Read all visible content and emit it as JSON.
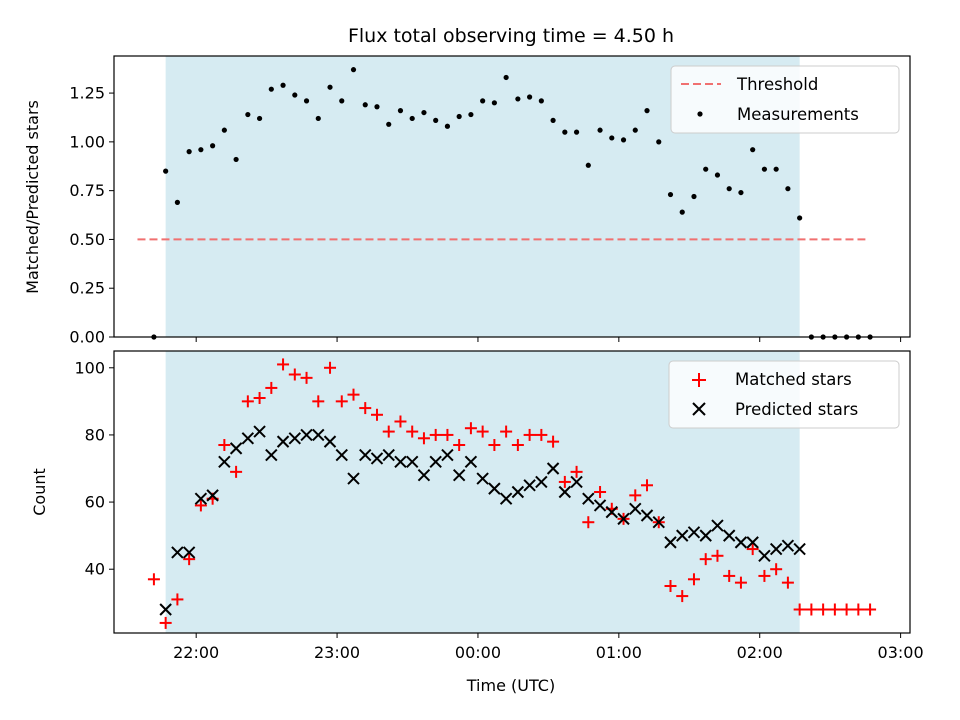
{
  "chart_data": {
    "title": "Flux total observing time = 4.50 h",
    "xlabel": "Time (UTC)",
    "x_tick_labels": [
      "22:00",
      "23:00",
      "00:00",
      "01:00",
      "02:00",
      "03:00"
    ],
    "span_color": "#add8e6",
    "panels": [
      {
        "type": "scatter",
        "ylabel": "Matched/Predicted stars",
        "ylim": [
          0,
          1.44
        ],
        "y_ticks": [
          "0.00",
          "0.25",
          "0.50",
          "0.75",
          "1.00",
          "1.25"
        ],
        "legend_position": "upper right",
        "shaded_span": [
          "21:47",
          "02:17"
        ],
        "threshold": {
          "name": "Threshold",
          "value": 0.5,
          "x_range": [
            "21:35",
            "02:45"
          ],
          "color": "#f07070",
          "style": "dashed"
        },
        "series": [
          {
            "name": "Measurements",
            "color": "#000000",
            "marker": "dot",
            "points": [
              [
                "21:42",
                0.0
              ],
              [
                "21:47",
                0.85
              ],
              [
                "21:52",
                0.69
              ],
              [
                "21:57",
                0.95
              ],
              [
                "22:02",
                0.96
              ],
              [
                "22:07",
                0.98
              ],
              [
                "22:12",
                1.06
              ],
              [
                "22:17",
                0.91
              ],
              [
                "22:22",
                1.14
              ],
              [
                "22:27",
                1.12
              ],
              [
                "22:32",
                1.27
              ],
              [
                "22:37",
                1.29
              ],
              [
                "22:42",
                1.24
              ],
              [
                "22:47",
                1.21
              ],
              [
                "22:52",
                1.12
              ],
              [
                "22:57",
                1.28
              ],
              [
                "23:02",
                1.21
              ],
              [
                "23:07",
                1.37
              ],
              [
                "23:12",
                1.19
              ],
              [
                "23:17",
                1.18
              ],
              [
                "23:22",
                1.09
              ],
              [
                "23:27",
                1.16
              ],
              [
                "23:32",
                1.12
              ],
              [
                "23:37",
                1.15
              ],
              [
                "23:42",
                1.11
              ],
              [
                "23:47",
                1.08
              ],
              [
                "23:52",
                1.13
              ],
              [
                "23:57",
                1.14
              ],
              [
                "00:02",
                1.21
              ],
              [
                "00:07",
                1.2
              ],
              [
                "00:12",
                1.33
              ],
              [
                "00:17",
                1.22
              ],
              [
                "00:22",
                1.23
              ],
              [
                "00:27",
                1.21
              ],
              [
                "00:32",
                1.11
              ],
              [
                "00:37",
                1.05
              ],
              [
                "00:42",
                1.05
              ],
              [
                "00:47",
                0.88
              ],
              [
                "00:52",
                1.06
              ],
              [
                "00:57",
                1.02
              ],
              [
                "01:02",
                1.01
              ],
              [
                "01:07",
                1.06
              ],
              [
                "01:12",
                1.16
              ],
              [
                "01:17",
                1.0
              ],
              [
                "01:22",
                0.73
              ],
              [
                "01:27",
                0.64
              ],
              [
                "01:32",
                0.72
              ],
              [
                "01:37",
                0.86
              ],
              [
                "01:42",
                0.83
              ],
              [
                "01:47",
                0.76
              ],
              [
                "01:52",
                0.74
              ],
              [
                "01:57",
                0.96
              ],
              [
                "02:02",
                0.86
              ],
              [
                "02:07",
                0.86
              ],
              [
                "02:12",
                0.76
              ],
              [
                "02:17",
                0.61
              ],
              [
                "02:22",
                0.0
              ],
              [
                "02:27",
                0.0
              ],
              [
                "02:32",
                0.0
              ],
              [
                "02:37",
                0.0
              ],
              [
                "02:42",
                0.0
              ],
              [
                "02:47",
                0.0
              ]
            ]
          }
        ]
      },
      {
        "type": "scatter",
        "ylabel": "Count",
        "ylim": [
          21,
          105
        ],
        "y_ticks": [
          "40",
          "60",
          "80",
          "100"
        ],
        "legend_position": "upper right",
        "shaded_span": [
          "21:47",
          "02:17"
        ],
        "series": [
          {
            "name": "Matched stars",
            "color": "#ff0000",
            "marker": "plus",
            "points": [
              [
                "21:42",
                37
              ],
              [
                "21:47",
                24
              ],
              [
                "21:52",
                31
              ],
              [
                "21:57",
                43
              ],
              [
                "22:02",
                59
              ],
              [
                "22:07",
                61
              ],
              [
                "22:12",
                77
              ],
              [
                "22:17",
                69
              ],
              [
                "22:22",
                90
              ],
              [
                "22:27",
                91
              ],
              [
                "22:32",
                94
              ],
              [
                "22:37",
                101
              ],
              [
                "22:42",
                98
              ],
              [
                "22:47",
                97
              ],
              [
                "22:52",
                90
              ],
              [
                "22:57",
                100
              ],
              [
                "23:02",
                90
              ],
              [
                "23:07",
                92
              ],
              [
                "23:12",
                88
              ],
              [
                "23:17",
                86
              ],
              [
                "23:22",
                81
              ],
              [
                "23:27",
                84
              ],
              [
                "23:32",
                81
              ],
              [
                "23:37",
                79
              ],
              [
                "23:42",
                80
              ],
              [
                "23:47",
                80
              ],
              [
                "23:52",
                77
              ],
              [
                "23:57",
                82
              ],
              [
                "00:02",
                81
              ],
              [
                "00:07",
                77
              ],
              [
                "00:12",
                81
              ],
              [
                "00:17",
                77
              ],
              [
                "00:22",
                80
              ],
              [
                "00:27",
                80
              ],
              [
                "00:32",
                78
              ],
              [
                "00:37",
                66
              ],
              [
                "00:42",
                69
              ],
              [
                "00:47",
                54
              ],
              [
                "00:52",
                63
              ],
              [
                "00:57",
                58
              ],
              [
                "01:02",
                55
              ],
              [
                "01:07",
                62
              ],
              [
                "01:12",
                65
              ],
              [
                "01:17",
                54
              ],
              [
                "01:22",
                35
              ],
              [
                "01:27",
                32
              ],
              [
                "01:32",
                37
              ],
              [
                "01:37",
                43
              ],
              [
                "01:42",
                44
              ],
              [
                "01:47",
                38
              ],
              [
                "01:52",
                36
              ],
              [
                "01:57",
                46
              ],
              [
                "02:02",
                38
              ],
              [
                "02:07",
                40
              ],
              [
                "02:12",
                36
              ],
              [
                "02:17",
                28
              ],
              [
                "02:22",
                28
              ],
              [
                "02:27",
                28
              ],
              [
                "02:32",
                28
              ],
              [
                "02:37",
                28
              ],
              [
                "02:42",
                28
              ],
              [
                "02:47",
                28
              ]
            ]
          },
          {
            "name": "Predicted stars",
            "color": "#000000",
            "marker": "x",
            "points": [
              [
                "21:47",
                28
              ],
              [
                "21:52",
                45
              ],
              [
                "21:57",
                45
              ],
              [
                "22:02",
                61
              ],
              [
                "22:07",
                62
              ],
              [
                "22:12",
                72
              ],
              [
                "22:17",
                76
              ],
              [
                "22:22",
                79
              ],
              [
                "22:27",
                81
              ],
              [
                "22:32",
                74
              ],
              [
                "22:37",
                78
              ],
              [
                "22:42",
                79
              ],
              [
                "22:47",
                80
              ],
              [
                "22:52",
                80
              ],
              [
                "22:57",
                78
              ],
              [
                "23:02",
                74
              ],
              [
                "23:07",
                67
              ],
              [
                "23:12",
                74
              ],
              [
                "23:17",
                73
              ],
              [
                "23:22",
                74
              ],
              [
                "23:27",
                72
              ],
              [
                "23:32",
                72
              ],
              [
                "23:37",
                68
              ],
              [
                "23:42",
                72
              ],
              [
                "23:47",
                74
              ],
              [
                "23:52",
                68
              ],
              [
                "23:57",
                72
              ],
              [
                "00:02",
                67
              ],
              [
                "00:07",
                64
              ],
              [
                "00:12",
                61
              ],
              [
                "00:17",
                63
              ],
              [
                "00:22",
                65
              ],
              [
                "00:27",
                66
              ],
              [
                "00:32",
                70
              ],
              [
                "00:37",
                63
              ],
              [
                "00:42",
                66
              ],
              [
                "00:47",
                61
              ],
              [
                "00:52",
                59
              ],
              [
                "00:57",
                57
              ],
              [
                "01:02",
                55
              ],
              [
                "01:07",
                58
              ],
              [
                "01:12",
                56
              ],
              [
                "01:17",
                54
              ],
              [
                "01:22",
                48
              ],
              [
                "01:27",
                50
              ],
              [
                "01:32",
                51
              ],
              [
                "01:37",
                50
              ],
              [
                "01:42",
                53
              ],
              [
                "01:47",
                50
              ],
              [
                "01:52",
                48
              ],
              [
                "01:57",
                48
              ],
              [
                "02:02",
                44
              ],
              [
                "02:07",
                46
              ],
              [
                "02:12",
                47
              ],
              [
                "02:17",
                46
              ]
            ]
          }
        ]
      }
    ]
  }
}
